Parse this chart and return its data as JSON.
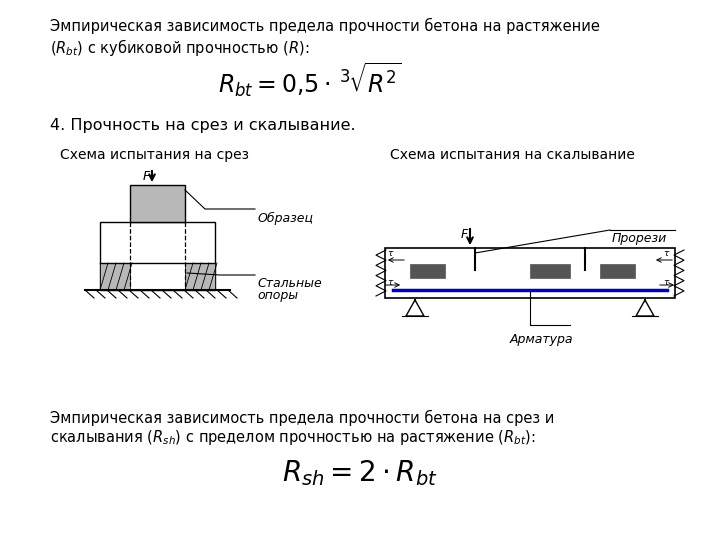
{
  "bg_color": "#ffffff",
  "text_color": "#000000",
  "gray_color": "#b8b8b8",
  "line1_text": "Эмпирическая зависимость предела прочности бетона на растяжение",
  "line2_text": "(Rₜₜ) с кубиковой прочностью (R):",
  "section_title": "4. Прочность на срез и скалывание.",
  "schema1_title": "Схема испытания на срез",
  "schema2_title": "Схема испытания на скалывание",
  "label_obrazec": "Образец",
  "label_stalnye1": "Стальные",
  "label_stalnye2": "опоры",
  "label_prorezi": "Прорези",
  "label_armatura": "Арматура",
  "bottom_text1": "Эмпирическая зависимость предела прочности бетона на срез и",
  "bottom_text2": "скалывания (Rₛℎ) с пределом прочностью на растяжение (Rₜₜ):",
  "text_fontsize": 10.5,
  "section_fontsize": 11.5,
  "schema_title_fontsize": 10,
  "label_fontsize": 9,
  "formula1_fontsize": 17,
  "formula2_fontsize": 20
}
